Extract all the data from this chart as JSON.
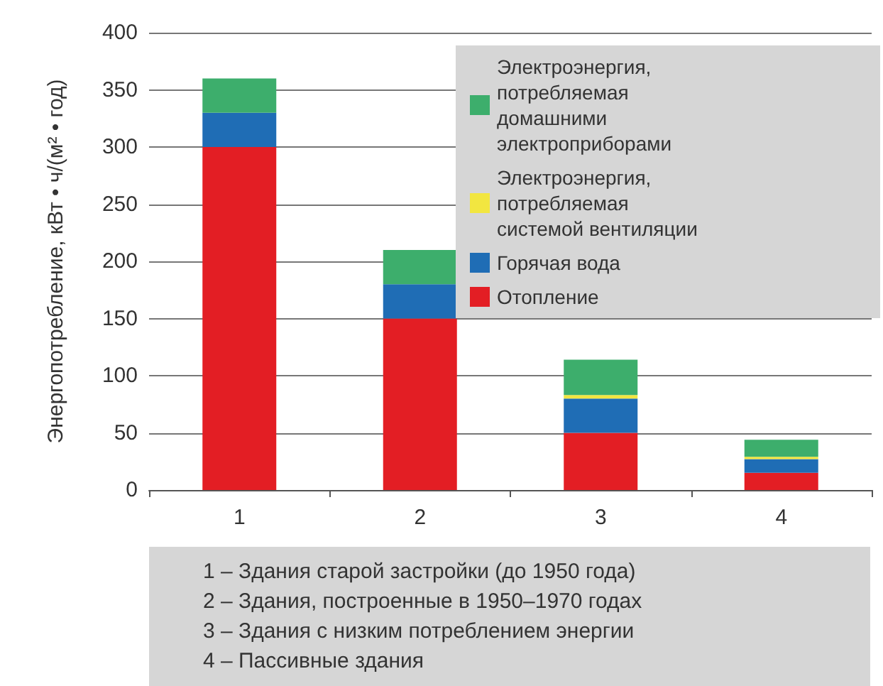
{
  "chart_data": {
    "type": "bar",
    "stacked": true,
    "ylabel": "Энергопотребление, кВт • ч/(м² • год)",
    "categories": [
      "1",
      "2",
      "3",
      "4"
    ],
    "series": [
      {
        "name": "Отопление",
        "color": "#e31e24",
        "values": [
          300,
          150,
          50,
          15
        ]
      },
      {
        "name": "Горячая вода",
        "color": "#1f6db5",
        "values": [
          30,
          30,
          30,
          12
        ]
      },
      {
        "name": "Электроэнергия, потребляемая системой вентиляции",
        "color": "#f2e640",
        "values": [
          null,
          null,
          3,
          2
        ]
      },
      {
        "name": "Электроэнергия, потребляемая домашними электроприборами",
        "color": "#3dae6c",
        "values": [
          30,
          30,
          31,
          15
        ]
      }
    ],
    "ylim": [
      0,
      400
    ],
    "yticks": [
      0,
      50,
      100,
      150,
      200,
      250,
      300,
      350,
      400
    ],
    "grid": "y",
    "legend": "top right",
    "annotations": [
      "1 – Здания старой застройки (до 1950 года)",
      "2 – Здания, построенные в 1950–1970 годах",
      "3 – Здания с низким потреблением энергии",
      "4 – Пассивные здания"
    ]
  }
}
